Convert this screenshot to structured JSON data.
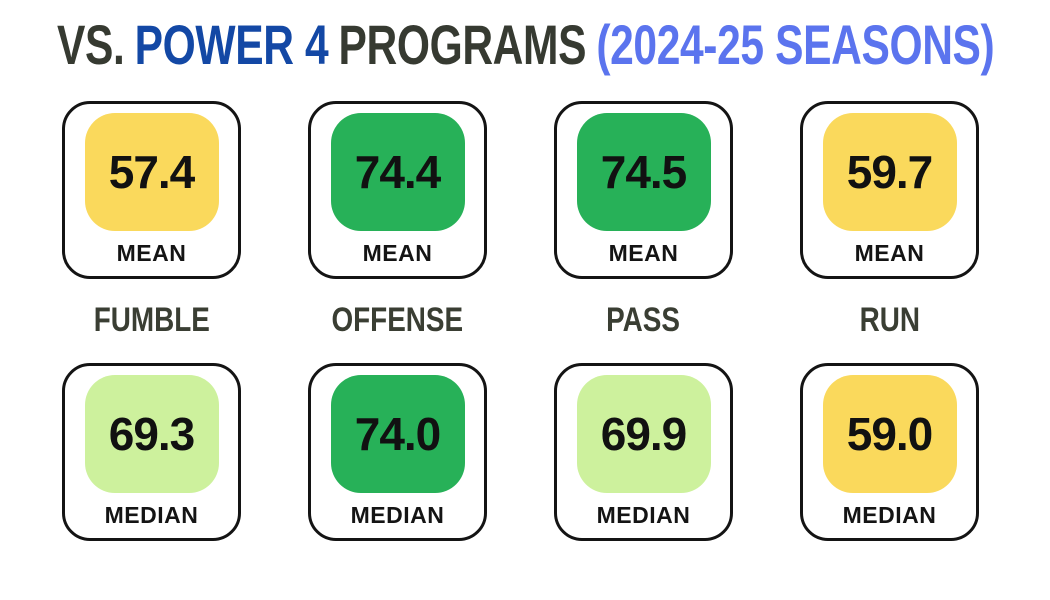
{
  "title": {
    "vs": "VS.",
    "power4": "POWER 4",
    "programs": "PROGRAMS",
    "seasons": "(2024-25 SEASONS)"
  },
  "colors": {
    "title_dark": "#363A31",
    "title_blue": "#1348A5",
    "title_lightblue": "#5B74EE",
    "category_text": "#3A3E33",
    "card_border": "#141414",
    "green": "#27B158",
    "yellow": "#FAD95C",
    "light_green": "#CDF19D"
  },
  "labels": {
    "mean": "MEAN",
    "median": "MEDIAN"
  },
  "columns": [
    {
      "label": "FUMBLE",
      "mean": "57.4",
      "mean_color": "#FAD95C",
      "median": "69.3",
      "median_color": "#CDF19D"
    },
    {
      "label": "OFFENSE",
      "mean": "74.4",
      "mean_color": "#27B158",
      "median": "74.0",
      "median_color": "#27B158"
    },
    {
      "label": "PASS",
      "mean": "74.5",
      "mean_color": "#27B158",
      "median": "69.9",
      "median_color": "#CDF19D"
    },
    {
      "label": "RUN",
      "mean": "59.7",
      "mean_color": "#FAD95C",
      "median": "59.0",
      "median_color": "#FAD95C"
    }
  ],
  "chart_data": {
    "type": "table",
    "title": "VS. POWER 4 PROGRAMS (2024-25 SEASONS)",
    "categories": [
      "FUMBLE",
      "OFFENSE",
      "PASS",
      "RUN"
    ],
    "series": [
      {
        "name": "MEAN",
        "values": [
          57.4,
          74.4,
          74.5,
          59.7
        ]
      },
      {
        "name": "MEDIAN",
        "values": [
          69.3,
          74.0,
          69.9,
          59.0
        ]
      }
    ],
    "color_coding": {
      "green": "high (>= ~74)",
      "light_green": "mid (~69)",
      "yellow": "low (~57-60)"
    },
    "legend_position": "none",
    "grid": false
  }
}
